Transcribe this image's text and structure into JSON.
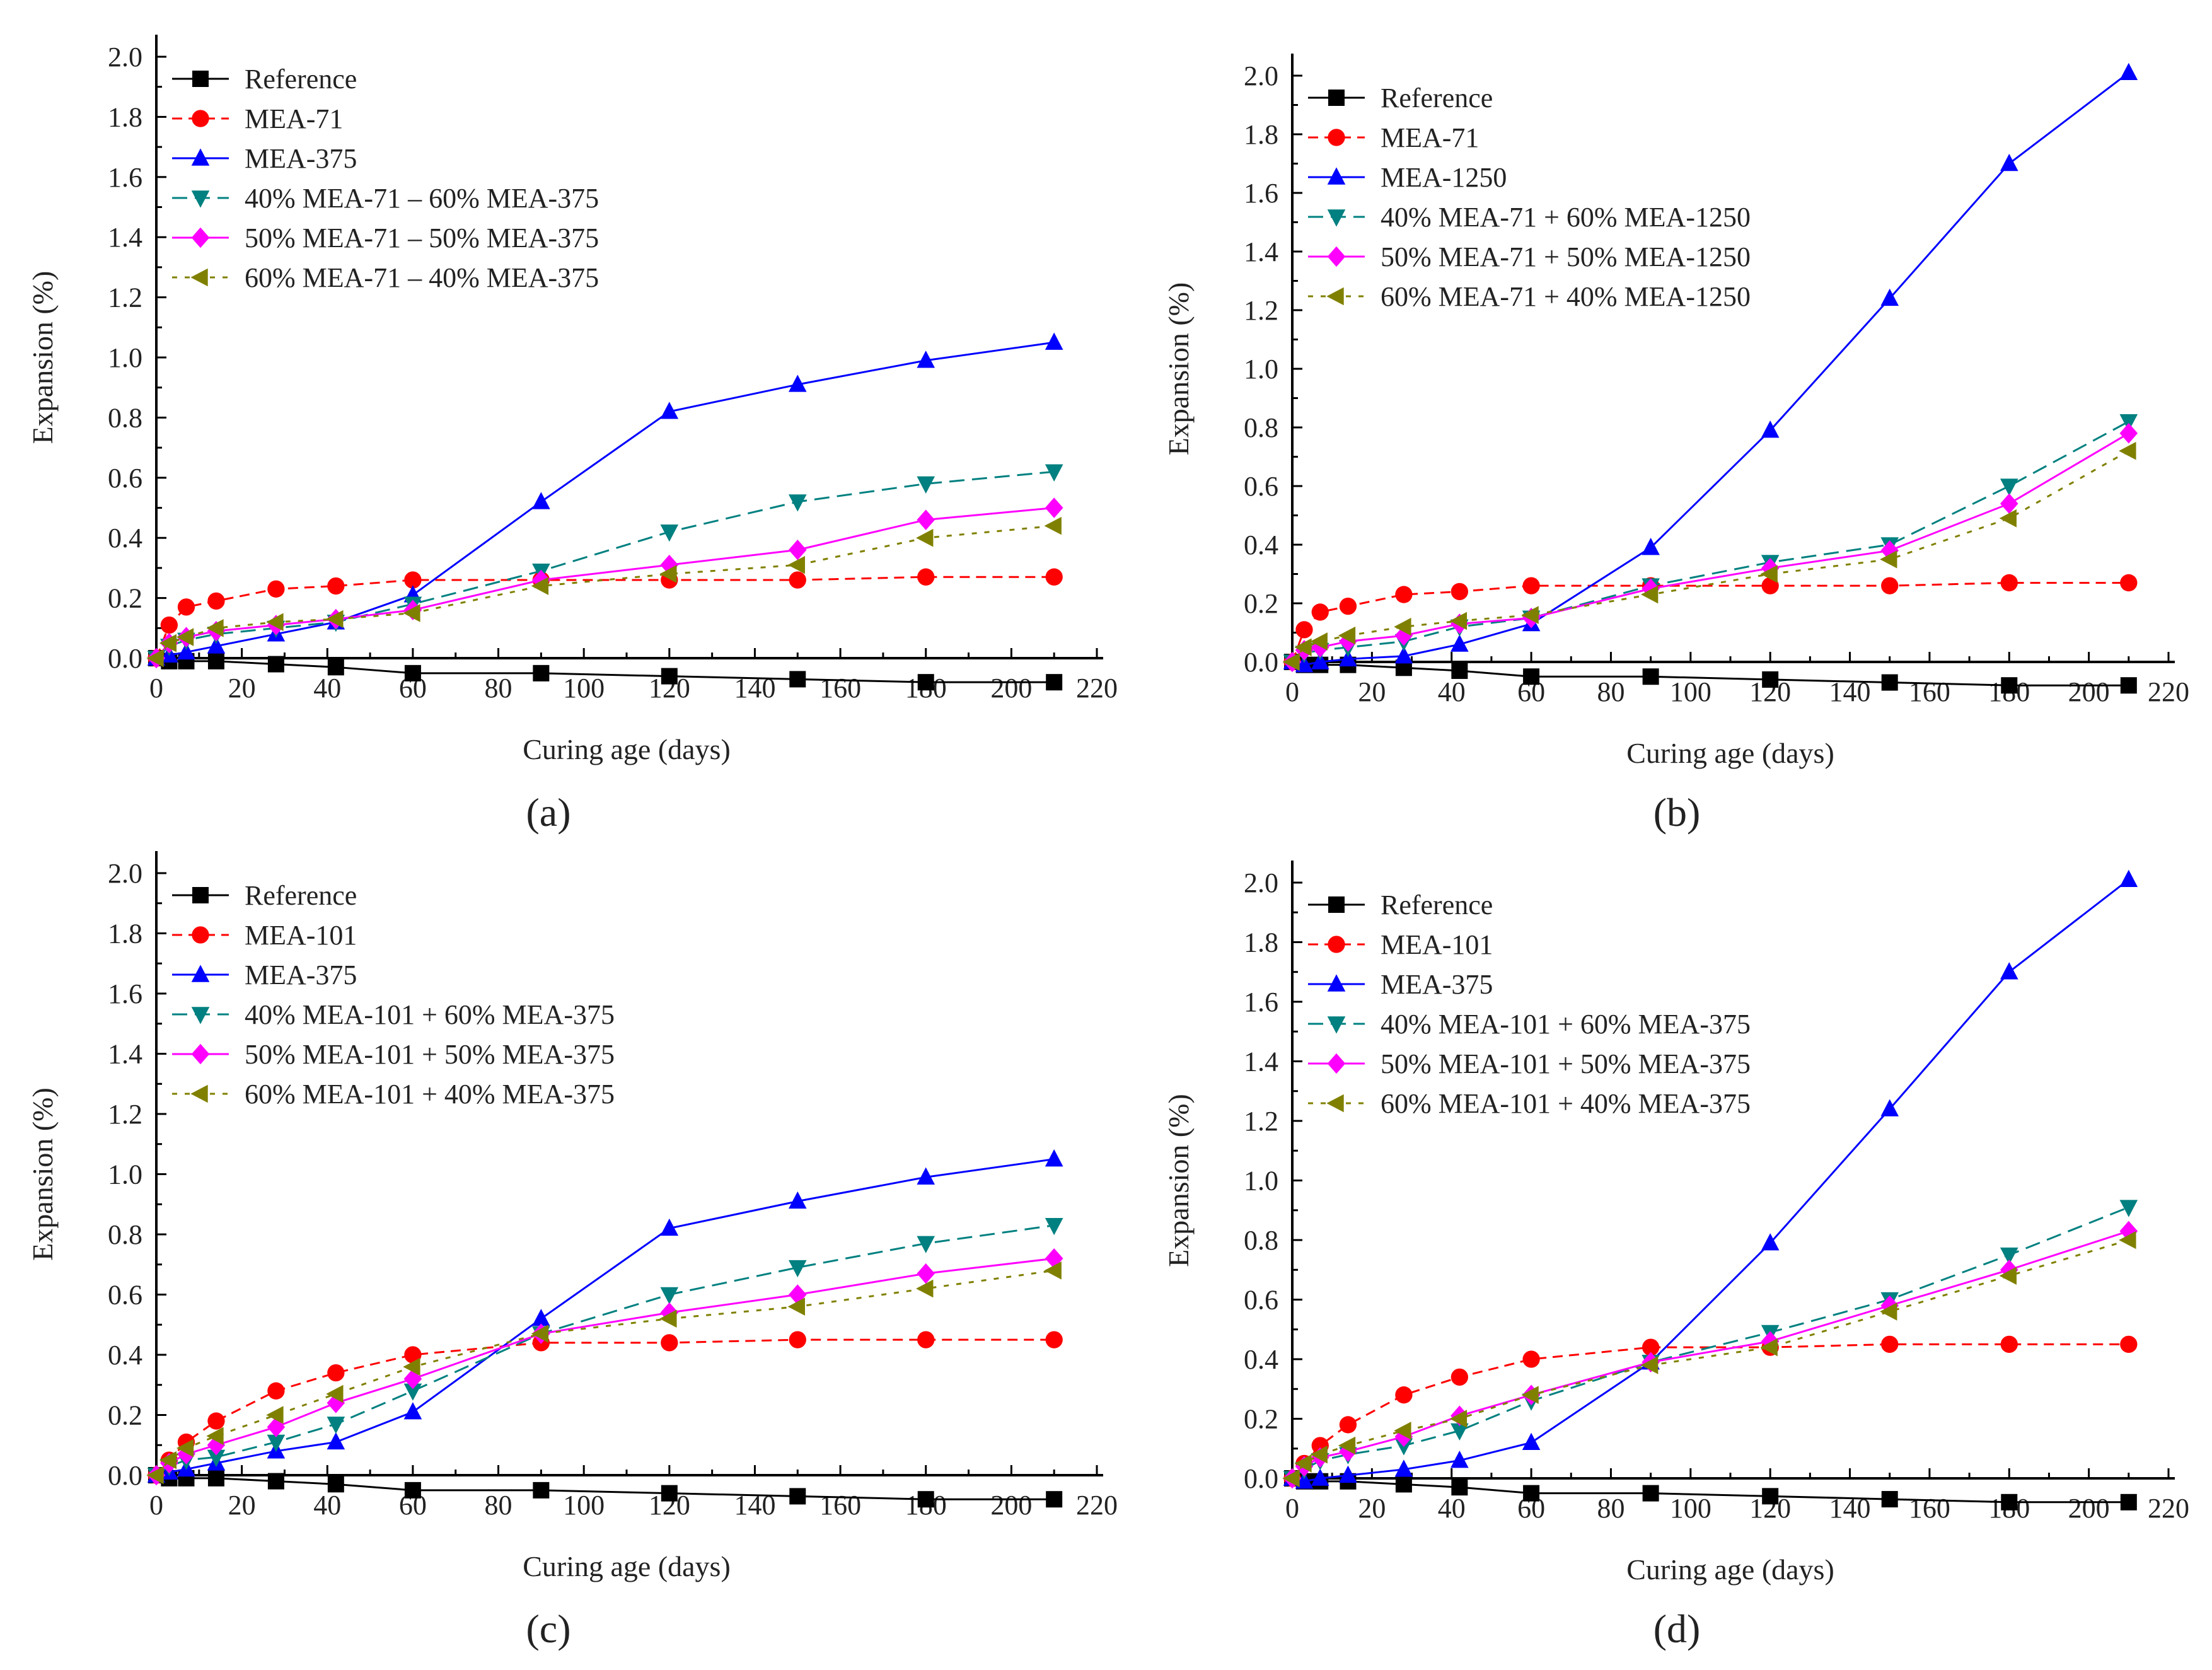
{
  "chart_data": [
    {
      "type": "line",
      "panel_label": "(a)",
      "xlabel": "Curing age (days)",
      "ylabel": "Expansion (%)",
      "xlim": [
        0,
        220
      ],
      "ylim": [
        0,
        2.0
      ],
      "xticks": [
        0,
        20,
        40,
        60,
        80,
        100,
        120,
        140,
        160,
        180,
        200,
        220
      ],
      "yticks": [
        0.0,
        0.2,
        0.4,
        0.6,
        0.8,
        1.0,
        1.2,
        1.4,
        1.6,
        1.8,
        2.0
      ],
      "legend": "top-left",
      "x": [
        0,
        3,
        7,
        14,
        28,
        42,
        60,
        90,
        120,
        150,
        180,
        210
      ],
      "series": [
        {
          "name": "Reference",
          "color": "#000000",
          "marker": "square",
          "values": [
            0,
            -0.01,
            -0.01,
            -0.01,
            -0.02,
            -0.03,
            -0.05,
            -0.05,
            -0.06,
            -0.07,
            -0.08,
            -0.08
          ]
        },
        {
          "name": "MEA-71",
          "color": "#ff0000",
          "marker": "circle",
          "values": [
            0,
            0.11,
            0.17,
            0.19,
            0.23,
            0.24,
            0.26,
            0.26,
            0.26,
            0.26,
            0.27,
            0.27
          ]
        },
        {
          "name": "MEA-375",
          "color": "#0000ff",
          "marker": "triangle-up",
          "values": [
            0,
            0.01,
            0.02,
            0.04,
            0.08,
            0.12,
            0.21,
            0.52,
            0.82,
            0.91,
            0.99,
            1.05
          ]
        },
        {
          "name": "40% MEA-71 – 60% MEA-375",
          "color": "#008080",
          "marker": "triangle-down",
          "values": [
            0,
            0.04,
            0.06,
            0.08,
            0.1,
            0.12,
            0.18,
            0.29,
            0.42,
            0.52,
            0.58,
            0.62
          ]
        },
        {
          "name": "50% MEA-71 – 50% MEA-375",
          "color": "#ff00ff",
          "marker": "diamond",
          "values": [
            0,
            0.05,
            0.07,
            0.09,
            0.11,
            0.13,
            0.16,
            0.26,
            0.31,
            0.36,
            0.46,
            0.5
          ]
        },
        {
          "name": "60% MEA-71 – 40% MEA-375",
          "color": "#808000",
          "marker": "triangle-left",
          "values": [
            0,
            0.05,
            0.07,
            0.1,
            0.12,
            0.13,
            0.15,
            0.24,
            0.28,
            0.31,
            0.4,
            0.44
          ]
        }
      ]
    },
    {
      "type": "line",
      "panel_label": "(b)",
      "xlabel": "Curing age (days)",
      "ylabel": "Expansion (%)",
      "xlim": [
        0,
        220
      ],
      "ylim": [
        0,
        2.0
      ],
      "xticks": [
        0,
        20,
        40,
        60,
        80,
        100,
        120,
        140,
        160,
        180,
        200,
        220
      ],
      "yticks": [
        0.0,
        0.2,
        0.4,
        0.6,
        0.8,
        1.0,
        1.2,
        1.4,
        1.6,
        1.8,
        2.0
      ],
      "legend": "top-left",
      "x": [
        0,
        3,
        7,
        14,
        28,
        42,
        60,
        90,
        120,
        150,
        180,
        210
      ],
      "series": [
        {
          "name": "Reference",
          "color": "#000000",
          "marker": "square",
          "values": [
            0,
            -0.01,
            -0.01,
            -0.01,
            -0.02,
            -0.03,
            -0.05,
            -0.05,
            -0.06,
            -0.07,
            -0.08,
            -0.08
          ]
        },
        {
          "name": "MEA-71",
          "color": "#ff0000",
          "marker": "circle",
          "values": [
            0,
            0.11,
            0.17,
            0.19,
            0.23,
            0.24,
            0.26,
            0.26,
            0.26,
            0.26,
            0.27,
            0.27
          ]
        },
        {
          "name": "MEA-1250",
          "color": "#0000ff",
          "marker": "triangle-up",
          "values": [
            0,
            -0.01,
            0.0,
            0.01,
            0.02,
            0.06,
            0.13,
            0.39,
            0.79,
            1.24,
            1.7,
            2.01
          ]
        },
        {
          "name": "40% MEA-71 + 60% MEA-1250",
          "color": "#008080",
          "marker": "triangle-down",
          "values": [
            0,
            0.03,
            0.04,
            0.05,
            0.07,
            0.12,
            0.15,
            0.26,
            0.34,
            0.4,
            0.6,
            0.82
          ]
        },
        {
          "name": "50% MEA-71 + 50% MEA-1250",
          "color": "#ff00ff",
          "marker": "diamond",
          "values": [
            0,
            0.04,
            0.05,
            0.07,
            0.09,
            0.13,
            0.15,
            0.25,
            0.32,
            0.38,
            0.54,
            0.78
          ]
        },
        {
          "name": "60% MEA-71 + 40% MEA-1250",
          "color": "#808000",
          "marker": "triangle-left",
          "values": [
            0,
            0.05,
            0.07,
            0.09,
            0.12,
            0.14,
            0.16,
            0.23,
            0.3,
            0.35,
            0.49,
            0.72
          ]
        }
      ]
    },
    {
      "type": "line",
      "panel_label": "(c)",
      "xlabel": "Curing age (days)",
      "ylabel": "Expansion (%)",
      "xlim": [
        0,
        220
      ],
      "ylim": [
        0,
        2.0
      ],
      "xticks": [
        0,
        20,
        40,
        60,
        80,
        100,
        120,
        140,
        160,
        180,
        200,
        220
      ],
      "yticks": [
        0.0,
        0.2,
        0.4,
        0.6,
        0.8,
        1.0,
        1.2,
        1.4,
        1.6,
        1.8,
        2.0
      ],
      "legend": "top-left",
      "x": [
        0,
        3,
        7,
        14,
        28,
        42,
        60,
        90,
        120,
        150,
        180,
        210
      ],
      "series": [
        {
          "name": "Reference",
          "color": "#000000",
          "marker": "square",
          "values": [
            0,
            -0.01,
            -0.01,
            -0.01,
            -0.02,
            -0.03,
            -0.05,
            -0.05,
            -0.06,
            -0.07,
            -0.08,
            -0.08
          ]
        },
        {
          "name": "MEA-101",
          "color": "#ff0000",
          "marker": "circle",
          "values": [
            0,
            0.05,
            0.11,
            0.18,
            0.28,
            0.34,
            0.4,
            0.44,
            0.44,
            0.45,
            0.45,
            0.45
          ]
        },
        {
          "name": "MEA-375",
          "color": "#0000ff",
          "marker": "triangle-up",
          "values": [
            0,
            0.01,
            0.02,
            0.04,
            0.08,
            0.11,
            0.21,
            0.52,
            0.82,
            0.91,
            0.99,
            1.05
          ]
        },
        {
          "name": "40% MEA-101 + 60% MEA-375",
          "color": "#008080",
          "marker": "triangle-down",
          "values": [
            0,
            0.03,
            0.05,
            0.06,
            0.11,
            0.17,
            0.28,
            0.47,
            0.6,
            0.69,
            0.77,
            0.83
          ]
        },
        {
          "name": "50% MEA-101 + 50% MEA-375",
          "color": "#ff00ff",
          "marker": "diamond",
          "values": [
            0,
            0.04,
            0.07,
            0.1,
            0.16,
            0.24,
            0.32,
            0.47,
            0.54,
            0.6,
            0.67,
            0.72
          ]
        },
        {
          "name": "60% MEA-101 + 40% MEA-375",
          "color": "#808000",
          "marker": "triangle-left",
          "values": [
            0,
            0.05,
            0.09,
            0.13,
            0.2,
            0.27,
            0.36,
            0.47,
            0.52,
            0.56,
            0.62,
            0.68
          ]
        }
      ]
    },
    {
      "type": "line",
      "panel_label": "(d)",
      "xlabel": "Curing age (days)",
      "ylabel": "Expansion (%)",
      "xlim": [
        0,
        220
      ],
      "ylim": [
        0,
        2.0
      ],
      "xticks": [
        0,
        20,
        40,
        60,
        80,
        100,
        120,
        140,
        160,
        180,
        200,
        220
      ],
      "yticks": [
        0.0,
        0.2,
        0.4,
        0.6,
        0.8,
        1.0,
        1.2,
        1.4,
        1.6,
        1.8,
        2.0
      ],
      "legend": "top-left",
      "x": [
        0,
        3,
        7,
        14,
        28,
        42,
        60,
        90,
        120,
        150,
        180,
        210
      ],
      "series": [
        {
          "name": "Reference",
          "color": "#000000",
          "marker": "square",
          "values": [
            0,
            -0.01,
            -0.01,
            -0.01,
            -0.02,
            -0.03,
            -0.05,
            -0.05,
            -0.06,
            -0.07,
            -0.08,
            -0.08
          ]
        },
        {
          "name": "MEA-101",
          "color": "#ff0000",
          "marker": "circle",
          "values": [
            0,
            0.05,
            0.11,
            0.18,
            0.28,
            0.34,
            0.4,
            0.44,
            0.44,
            0.45,
            0.45,
            0.45
          ]
        },
        {
          "name": "MEA-375",
          "color": "#0000ff",
          "marker": "triangle-up",
          "values": [
            0,
            -0.01,
            0.0,
            0.01,
            0.03,
            0.06,
            0.12,
            0.39,
            0.79,
            1.24,
            1.7,
            2.01
          ]
        },
        {
          "name": "40% MEA-101 + 60% MEA-375",
          "color": "#008080",
          "marker": "triangle-down",
          "values": [
            0,
            0.03,
            0.06,
            0.08,
            0.11,
            0.16,
            0.26,
            0.39,
            0.49,
            0.6,
            0.75,
            0.91
          ]
        },
        {
          "name": "50% MEA-101 + 50% MEA-375",
          "color": "#ff00ff",
          "marker": "diamond",
          "values": [
            0,
            0.04,
            0.07,
            0.09,
            0.14,
            0.21,
            0.28,
            0.39,
            0.46,
            0.58,
            0.7,
            0.83
          ]
        },
        {
          "name": "60% MEA-101 + 40% MEA-375",
          "color": "#808000",
          "marker": "triangle-left",
          "values": [
            0,
            0.05,
            0.08,
            0.11,
            0.16,
            0.2,
            0.28,
            0.38,
            0.44,
            0.56,
            0.68,
            0.8
          ]
        }
      ]
    }
  ]
}
